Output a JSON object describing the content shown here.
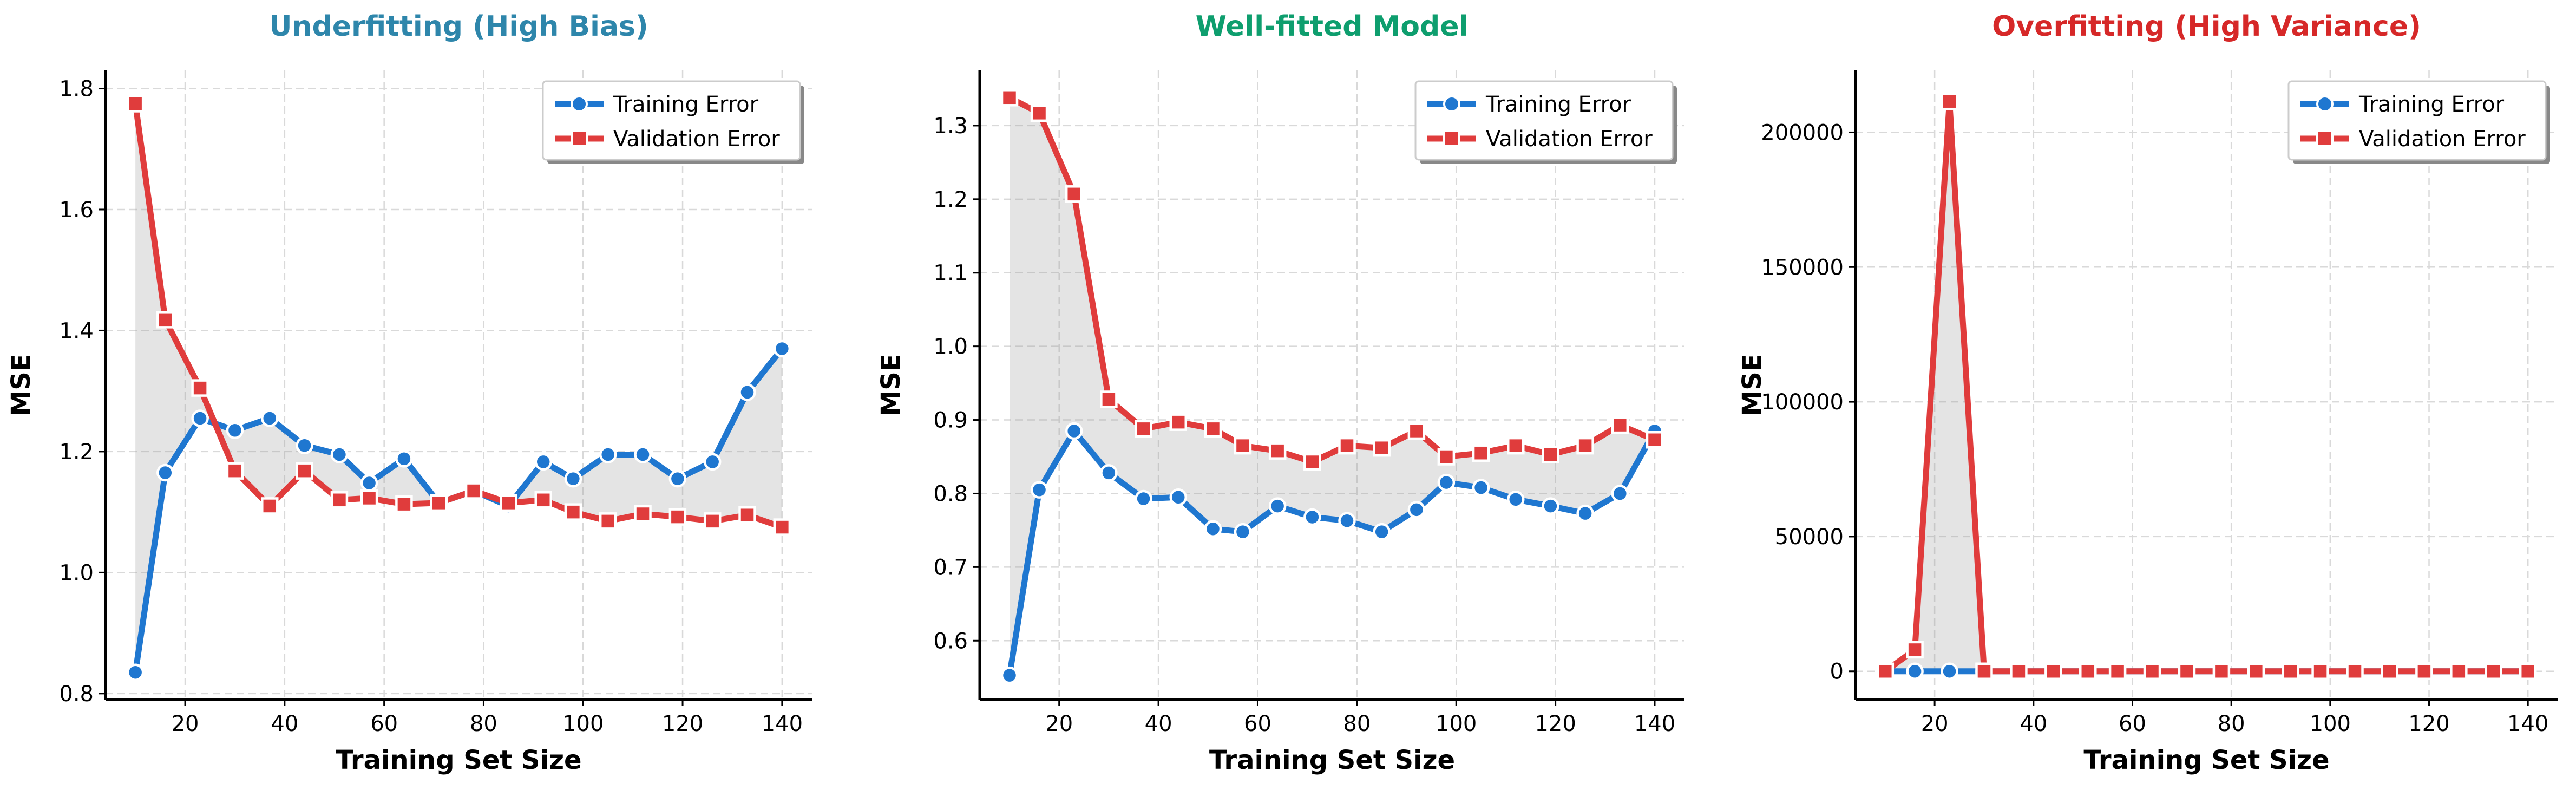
{
  "chart_data": [
    {
      "type": "line",
      "title": "Underfitting (High Bias)",
      "title_color": "#2E86AB",
      "xlabel": "Training Set Size",
      "ylabel": "MSE",
      "xlim": [
        4,
        146
      ],
      "ylim": [
        0.79,
        1.83
      ],
      "xticks": [
        20,
        40,
        60,
        80,
        100,
        120,
        140
      ],
      "yticks": [
        0.8,
        1.0,
        1.2,
        1.4,
        1.6,
        1.8
      ],
      "ytick_decimals": 1,
      "grid": true,
      "legend_position": "top-right",
      "fill_between": true,
      "x": [
        10,
        16,
        23,
        30,
        37,
        44,
        51,
        57,
        64,
        71,
        78,
        85,
        92,
        98,
        105,
        112,
        119,
        126,
        133,
        140
      ],
      "series": [
        {
          "name": "Training Error",
          "color": "#1F77D0",
          "marker": "circle",
          "values": [
            0.835,
            1.165,
            1.255,
            1.235,
            1.255,
            1.21,
            1.195,
            1.148,
            1.188,
            1.115,
            1.135,
            1.11,
            1.183,
            1.155,
            1.195,
            1.195,
            1.155,
            1.183,
            1.298,
            1.37
          ]
        },
        {
          "name": "Validation Error",
          "color": "#E03C3C",
          "marker": "square",
          "values": [
            1.775,
            1.418,
            1.305,
            1.168,
            1.11,
            1.168,
            1.12,
            1.123,
            1.113,
            1.115,
            1.135,
            1.115,
            1.12,
            1.1,
            1.085,
            1.097,
            1.092,
            1.085,
            1.095,
            1.075
          ]
        }
      ]
    },
    {
      "type": "line",
      "title": "Well-fitted Model",
      "title_color": "#0E9E6E",
      "xlabel": "Training Set Size",
      "ylabel": "MSE",
      "xlim": [
        4,
        146
      ],
      "ylim": [
        0.52,
        1.375
      ],
      "xticks": [
        20,
        40,
        60,
        80,
        100,
        120,
        140
      ],
      "yticks": [
        0.6,
        0.7,
        0.8,
        0.9,
        1.0,
        1.1,
        1.2,
        1.3
      ],
      "ytick_decimals": 1,
      "grid": true,
      "legend_position": "top-right",
      "fill_between": true,
      "x": [
        10,
        16,
        23,
        30,
        37,
        44,
        51,
        57,
        64,
        71,
        78,
        85,
        92,
        98,
        105,
        112,
        119,
        126,
        133,
        140
      ],
      "series": [
        {
          "name": "Training Error",
          "color": "#1F77D0",
          "marker": "circle",
          "values": [
            0.553,
            0.805,
            0.885,
            0.828,
            0.793,
            0.795,
            0.752,
            0.748,
            0.783,
            0.768,
            0.763,
            0.748,
            0.778,
            0.815,
            0.808,
            0.792,
            0.783,
            0.773,
            0.8,
            0.885
          ]
        },
        {
          "name": "Validation Error",
          "color": "#E03C3C",
          "marker": "square",
          "values": [
            1.338,
            1.317,
            1.207,
            0.928,
            0.888,
            0.897,
            0.888,
            0.865,
            0.858,
            0.843,
            0.865,
            0.862,
            0.885,
            0.85,
            0.855,
            0.865,
            0.853,
            0.865,
            0.893,
            0.873
          ]
        }
      ]
    },
    {
      "type": "line",
      "title": "Overfitting (High Variance)",
      "title_color": "#D62828",
      "xlabel": "Training Set Size",
      "ylabel": "MSE",
      "xlim": [
        4,
        146
      ],
      "ylim": [
        -10500,
        223000
      ],
      "xticks": [
        20,
        40,
        60,
        80,
        100,
        120,
        140
      ],
      "yticks": [
        0,
        50000,
        100000,
        150000,
        200000
      ],
      "ytick_decimals": 0,
      "grid": true,
      "legend_position": "top-right",
      "fill_between": true,
      "x": [
        10,
        16,
        23,
        30,
        37,
        44,
        51,
        57,
        64,
        71,
        78,
        85,
        92,
        98,
        105,
        112,
        119,
        126,
        133,
        140
      ],
      "series": [
        {
          "name": "Training Error",
          "color": "#1F77D0",
          "marker": "circle",
          "values": [
            0,
            0,
            0,
            0,
            0,
            0,
            0,
            0,
            0,
            0,
            0,
            0,
            0,
            0,
            0,
            0,
            0,
            0,
            0,
            0
          ]
        },
        {
          "name": "Validation Error",
          "color": "#E03C3C",
          "marker": "square",
          "values": [
            0,
            8000,
            211500,
            0,
            0,
            0,
            0,
            0,
            0,
            0,
            0,
            0,
            0,
            0,
            0,
            0,
            0,
            0,
            0,
            0
          ]
        }
      ]
    }
  ]
}
